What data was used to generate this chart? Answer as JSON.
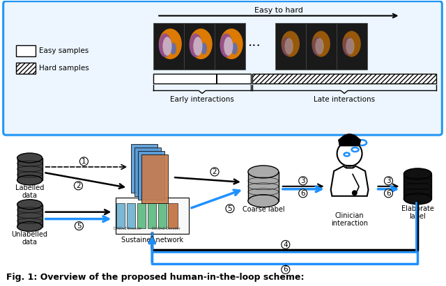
{
  "fig_width": 6.4,
  "fig_height": 4.11,
  "dpi": 100,
  "bg_color": "#ffffff",
  "blue_color": "#1E90FF",
  "caption": "Fig. 1: Overview of the proposed human-in-the-loop scheme:",
  "top_box_title": "Easy to hard",
  "legend_easy": "Easy samples",
  "legend_hard": "Hard samples",
  "early_text": "Early interactions",
  "late_text": "Late interactions"
}
